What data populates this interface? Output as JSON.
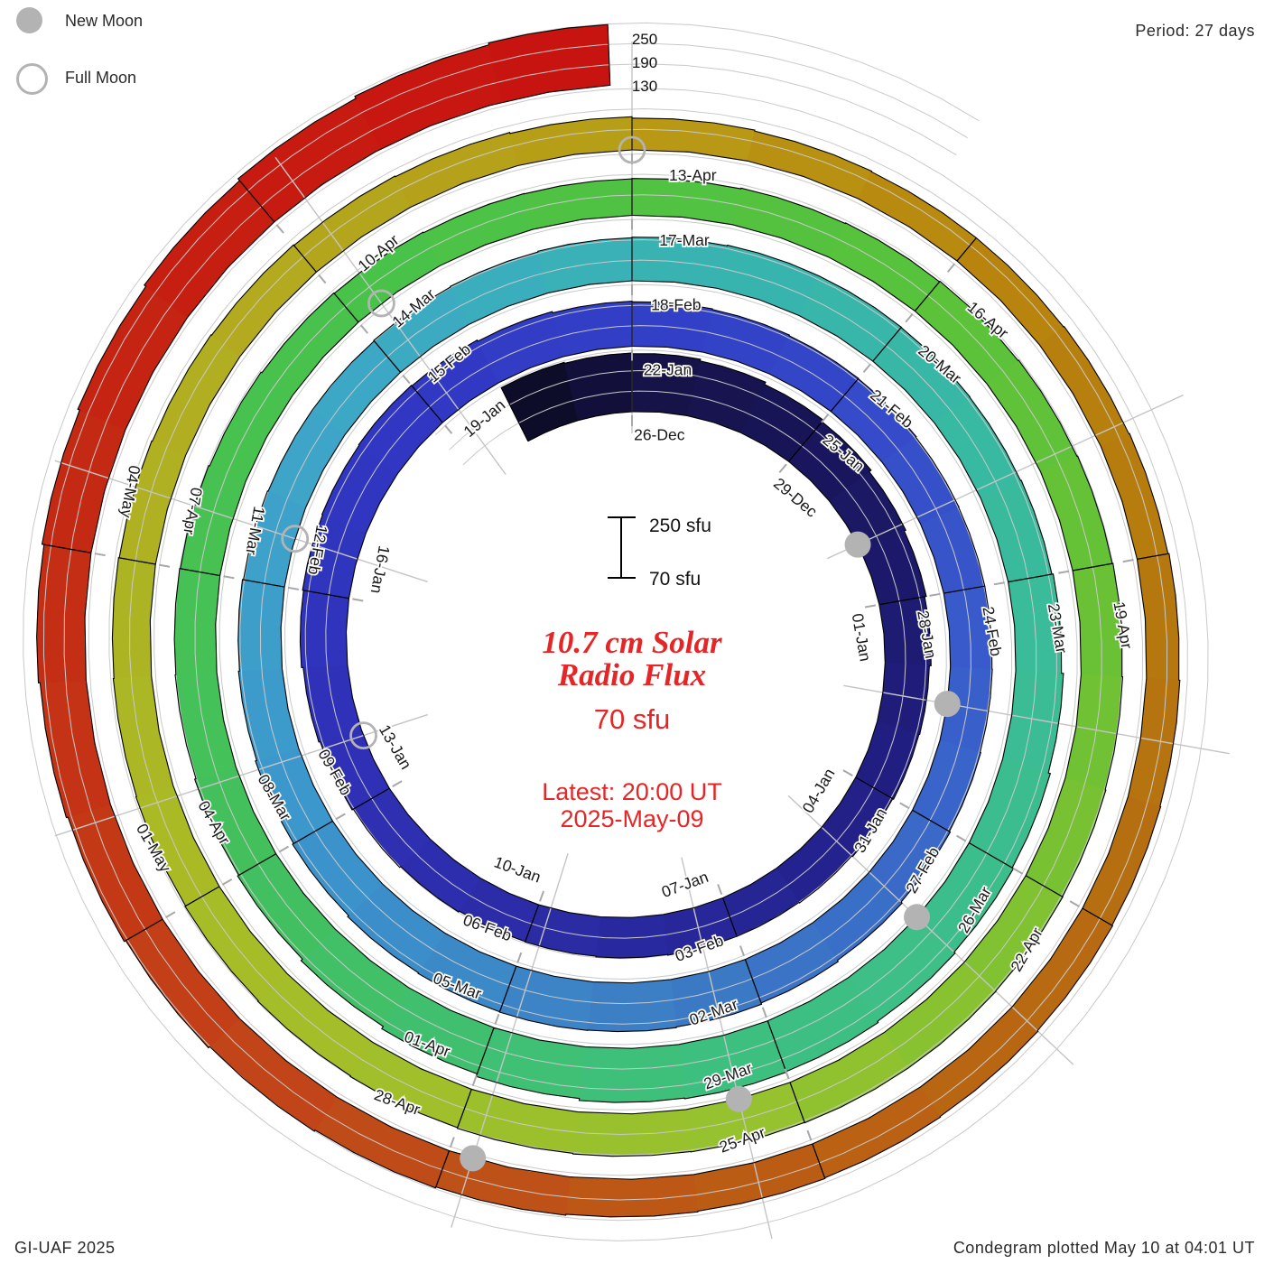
{
  "legend": {
    "new_moon_label": "New Moon",
    "full_moon_label": "Full Moon",
    "marker_color": "#b3b3b3"
  },
  "header": {
    "period_label": "Period: 27 days"
  },
  "footer": {
    "credit": "GI-UAF 2025",
    "plotted": "Condegram plotted May 10 at 04:01 UT"
  },
  "center_text": {
    "title_line1": "10.7 cm Solar",
    "title_line2": "Radio Flux",
    "baseline_label": "70 sfu",
    "latest_line1": "Latest: 20:00 UT",
    "latest_line2": "2025-May-09",
    "accent_color": "#e62626"
  },
  "scale_bar": {
    "top_label": "250 sfu",
    "bottom_label": "70 sfu"
  },
  "radial_axis_labels": [
    "250",
    "190",
    "130"
  ],
  "chart_data": {
    "type": "spiral_condegram",
    "title": "10.7 cm Solar Radio Flux",
    "period_days": 27,
    "baseline_sfu": 70,
    "max_scale_sfu": 250,
    "gridlines_sfu": [
      130,
      190,
      250
    ],
    "start_date": "2024-12-24",
    "end_date": "2025-05-09 20:00 UT",
    "first_label_day_is": "2024-12-26",
    "label_step_days": 3,
    "last_day_fraction": 0.833,
    "labels": [
      "26-Dec",
      "29-Dec",
      "01-Jan",
      "04-Jan",
      "07-Jan",
      "10-Jan",
      "13-Jan",
      "16-Jan",
      "19-Jan",
      "22-Jan",
      "25-Jan",
      "28-Jan",
      "31-Jan",
      "03-Feb",
      "06-Feb",
      "09-Feb",
      "12-Feb",
      "15-Feb",
      "18-Feb",
      "21-Feb",
      "24-Feb",
      "27-Feb",
      "02-Mar",
      "05-Mar",
      "08-Mar",
      "11-Mar",
      "14-Mar",
      "17-Mar",
      "20-Mar",
      "23-Mar",
      "26-Mar",
      "29-Mar",
      "01-Apr",
      "04-Apr",
      "07-Apr",
      "10-Apr",
      "13-Apr",
      "16-Apr",
      "19-Apr",
      "22-Apr",
      "25-Apr",
      "28-Apr",
      "01-May",
      "04-May"
    ],
    "values_sfu": [
      245,
      242,
      240,
      235,
      228,
      222,
      215,
      210,
      205,
      200,
      198,
      195,
      192,
      190,
      190,
      188,
      186,
      185,
      188,
      192,
      196,
      200,
      205,
      208,
      210,
      212,
      210,
      206,
      202,
      200,
      198,
      196,
      195,
      193,
      192,
      192,
      193,
      195,
      198,
      202,
      206,
      210,
      212,
      213,
      212,
      210,
      206,
      202,
      198,
      195,
      192,
      190,
      190,
      192,
      194,
      196,
      198,
      200,
      200,
      199,
      198,
      200,
      204,
      210,
      216,
      220,
      224,
      228,
      230,
      228,
      222,
      214,
      206,
      200,
      196,
      192,
      190,
      188,
      185,
      182,
      180,
      178,
      177,
      178,
      180,
      182,
      184,
      186,
      188,
      190,
      192,
      194,
      195,
      196,
      196,
      195,
      194,
      192,
      190,
      188,
      186,
      184,
      182,
      180,
      178,
      176,
      174,
      172,
      170,
      167,
      163,
      160,
      158,
      158,
      160,
      162,
      165,
      168,
      170,
      172,
      174,
      176,
      178,
      180,
      183,
      186,
      190,
      195,
      200,
      205,
      210,
      216,
      222,
      228,
      235,
      242,
      248
    ],
    "values_start_day_offset": -2,
    "new_moons": [
      {
        "date": "30-Dec",
        "day": 4.9
      },
      {
        "date": "29-Jan",
        "day": 34.5
      },
      {
        "date": "28-Feb",
        "day": 64.0
      },
      {
        "date": "29-Mar",
        "day": 93.5
      },
      {
        "date": "27-Apr",
        "day": 122.8
      }
    ],
    "full_moons": [
      {
        "date": "13-Jan",
        "day": 18.9
      },
      {
        "date": "12-Feb",
        "day": 48.6
      },
      {
        "date": "14-Mar",
        "day": 78.3
      },
      {
        "date": "13-Apr",
        "day": 108.0
      }
    ],
    "moon_marker_color": "#b3b3b3",
    "gridline_color": "#c9c9c9",
    "outline_color": "#000000",
    "colormap": [
      {
        "day": -2,
        "color": "#0a0a20"
      },
      {
        "day": 0,
        "color": "#151244"
      },
      {
        "day": 4,
        "color": "#1a1760"
      },
      {
        "day": 9,
        "color": "#221f85"
      },
      {
        "day": 14,
        "color": "#2a2aa2"
      },
      {
        "day": 19,
        "color": "#2f31b8"
      },
      {
        "day": 24,
        "color": "#3138c4"
      },
      {
        "day": 29,
        "color": "#3344c8"
      },
      {
        "day": 34,
        "color": "#385cca"
      },
      {
        "day": 40,
        "color": "#3c7cc4"
      },
      {
        "day": 45,
        "color": "#3c96cc"
      },
      {
        "day": 50,
        "color": "#3ea6c8"
      },
      {
        "day": 54,
        "color": "#38b2b4"
      },
      {
        "day": 58,
        "color": "#38b8a4"
      },
      {
        "day": 63,
        "color": "#3cbe8e"
      },
      {
        "day": 68,
        "color": "#3ec078"
      },
      {
        "day": 72,
        "color": "#42c05e"
      },
      {
        "day": 78,
        "color": "#48c24a"
      },
      {
        "day": 84,
        "color": "#58c23a"
      },
      {
        "day": 88,
        "color": "#6cc134"
      },
      {
        "day": 93,
        "color": "#94c230"
      },
      {
        "day": 99,
        "color": "#a8bc26"
      },
      {
        "day": 104,
        "color": "#b2ac20"
      },
      {
        "day": 108,
        "color": "#b89c16"
      },
      {
        "day": 111,
        "color": "#b8860e"
      },
      {
        "day": 115,
        "color": "#b4760e"
      },
      {
        "day": 118,
        "color": "#b86812"
      },
      {
        "day": 121,
        "color": "#bc5a16"
      },
      {
        "day": 124,
        "color": "#c04818"
      },
      {
        "day": 127,
        "color": "#c43616"
      },
      {
        "day": 130,
        "color": "#c42612"
      },
      {
        "day": 134,
        "color": "#c81410"
      }
    ]
  }
}
